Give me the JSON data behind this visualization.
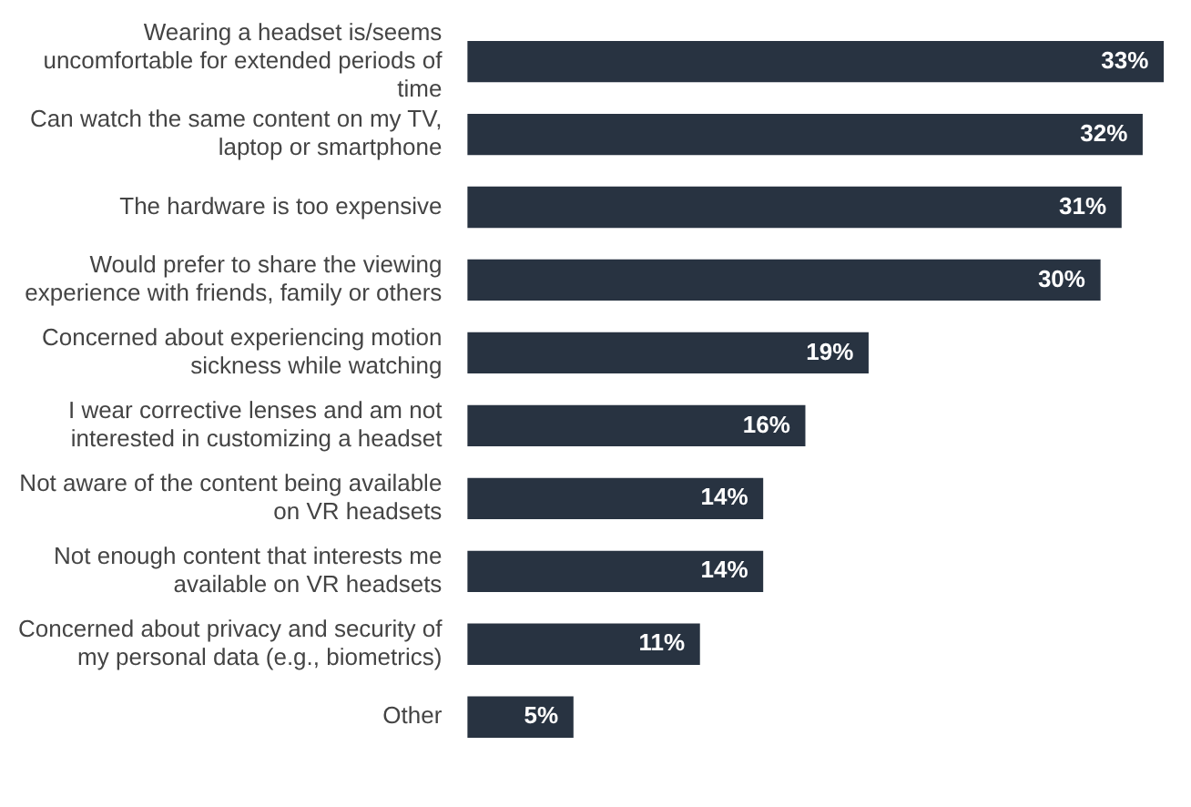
{
  "chart_data": {
    "type": "bar",
    "orientation": "horizontal",
    "color": "#283341",
    "categories": [
      "Wearing a headset is/seems uncomfortable for extended periods of time",
      "Can watch the same content on my TV, laptop or smartphone",
      "The hardware is too expensive",
      "Would prefer to share the viewing experience with friends, family or others",
      "Concerned about experiencing motion sickness while watching",
      "I wear corrective lenses and am not interested in customizing a headset",
      "Not aware of the content being available on VR headsets",
      "Not enough content that interests me available on VR headsets",
      "Concerned about privacy and security of my personal data (e.g., biometrics)",
      "Other"
    ],
    "values": [
      33,
      32,
      31,
      30,
      19,
      16,
      14,
      14,
      11,
      5
    ],
    "value_labels": [
      "33%",
      "32%",
      "31%",
      "30%",
      "19%",
      "16%",
      "14%",
      "14%",
      "11%",
      "5%"
    ]
  }
}
